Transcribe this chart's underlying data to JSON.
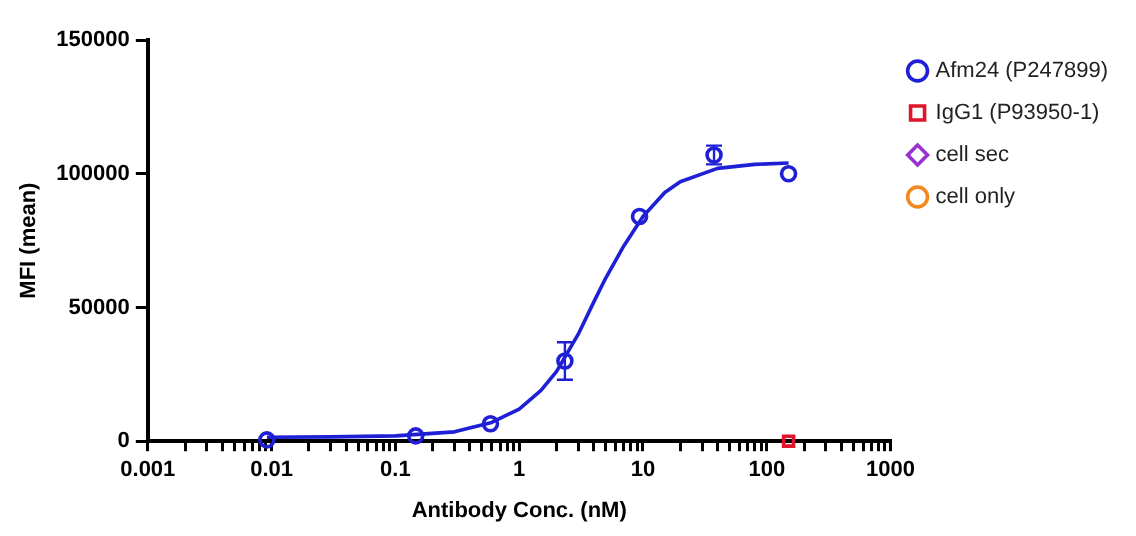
{
  "chart_data": {
    "type": "scatter",
    "xlabel": "Antibody Conc. (nM)",
    "ylabel": "MFI (mean)",
    "log": "x",
    "grid": false,
    "legend": "top right",
    "xlim": [
      0.001,
      1000
    ],
    "ylim": [
      0,
      150000
    ],
    "xticks": [
      0.001,
      {
        "value": 0.002,
        "label": null
      },
      {
        "value": 0.003,
        "label": null
      },
      {
        "value": 0.004,
        "label": null
      },
      {
        "value": 0.005,
        "label": null
      },
      {
        "value": 0.006,
        "label": null
      },
      {
        "value": 0.007,
        "label": null
      },
      {
        "value": 0.008,
        "label": null
      },
      {
        "value": 0.009,
        "label": null
      },
      0.01,
      {
        "value": 0.02,
        "label": null
      },
      {
        "value": 0.03,
        "label": null
      },
      {
        "value": 0.04,
        "label": null
      },
      {
        "value": 0.05,
        "label": null
      },
      {
        "value": 0.06,
        "label": null
      },
      {
        "value": 0.07,
        "label": null
      },
      {
        "value": 0.08,
        "label": null
      },
      {
        "value": 0.09,
        "label": null
      },
      0.1,
      {
        "value": 0.2,
        "label": null
      },
      {
        "value": 0.3,
        "label": null
      },
      {
        "value": 0.4,
        "label": null
      },
      {
        "value": 0.5,
        "label": null
      },
      {
        "value": 0.6,
        "label": null
      },
      {
        "value": 0.7,
        "label": null
      },
      {
        "value": 0.8,
        "label": null
      },
      {
        "value": 0.9,
        "label": null
      },
      1,
      {
        "value": 2,
        "label": null
      },
      {
        "value": 3,
        "label": null
      },
      {
        "value": 4,
        "label": null
      },
      {
        "value": 5,
        "label": null
      },
      {
        "value": 6,
        "label": null
      },
      {
        "value": 7,
        "label": null
      },
      {
        "value": 8,
        "label": null
      },
      {
        "value": 9,
        "label": null
      },
      10,
      {
        "value": 20,
        "label": null
      },
      {
        "value": 30,
        "label": null
      },
      {
        "value": 40,
        "label": null
      },
      {
        "value": 50,
        "label": null
      },
      {
        "value": 60,
        "label": null
      },
      {
        "value": 70,
        "label": null
      },
      {
        "value": 80,
        "label": null
      },
      {
        "value": 90,
        "label": null
      },
      100,
      {
        "value": 200,
        "label": null
      },
      {
        "value": 300,
        "label": null
      },
      {
        "value": 400,
        "label": null
      },
      {
        "value": 500,
        "label": null
      },
      {
        "value": 600,
        "label": null
      },
      {
        "value": 700,
        "label": null
      },
      {
        "value": 800,
        "label": null
      },
      {
        "value": 900,
        "label": null
      },
      1000
    ],
    "yticks": [
      0,
      50000,
      100000,
      150000
    ],
    "series": [
      {
        "name": "Afm24 (P247899)",
        "color": "#1f1fd6",
        "marker": "circle",
        "x": [
          0.00916,
          0.146,
          0.586,
          2.34,
          9.38,
          37.5,
          150
        ],
        "values": [
          500,
          2000,
          6500,
          30000,
          84000,
          107000,
          100000
        ],
        "errors": [
          null,
          null,
          null,
          7000,
          null,
          3500,
          null
        ]
      },
      {
        "type": "line",
        "color": "#1f1fd6",
        "marker": "none",
        "line_style": "solid",
        "x": [
          0.00916,
          0.03,
          0.1,
          0.3,
          0.6,
          1,
          1.5,
          2,
          3,
          4,
          5,
          7,
          10,
          15,
          20,
          40,
          80,
          150
        ],
        "values": [
          1500,
          1600,
          2000,
          3500,
          7000,
          12000,
          19000,
          26000,
          40000,
          52000,
          61000,
          73000,
          84000,
          93000,
          97000,
          102000,
          103500,
          104000
        ]
      },
      {
        "name": "IgG1 (P93950-1)",
        "color": "#e0142a",
        "marker": "square",
        "x": [
          150
        ],
        "values": [
          0
        ]
      },
      {
        "name": "cell sec",
        "color": "#9b30d0",
        "marker": "diamond"
      },
      {
        "name": "cell only",
        "color": "#f08a20",
        "marker": "circle"
      }
    ]
  }
}
